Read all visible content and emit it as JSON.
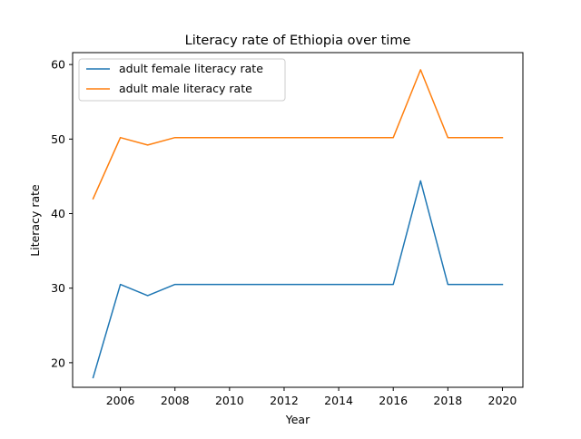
{
  "chart_data": {
    "type": "line",
    "title": "Literacy rate of Ethiopia over time",
    "xlabel": "Year",
    "ylabel": "Literacy rate",
    "xlim": [
      2004.25,
      2020.75
    ],
    "ylim": [
      16.7,
      61.6
    ],
    "x": [
      2005,
      2006,
      2007,
      2008,
      2009,
      2010,
      2011,
      2012,
      2013,
      2014,
      2015,
      2016,
      2017,
      2018,
      2019,
      2020
    ],
    "x_ticks": [
      2006,
      2008,
      2010,
      2012,
      2014,
      2016,
      2018,
      2020
    ],
    "x_tick_labels": [
      "2006",
      "2008",
      "2010",
      "2012",
      "2014",
      "2016",
      "2018",
      "2020"
    ],
    "y_ticks": [
      20,
      30,
      40,
      50,
      60
    ],
    "y_tick_labels": [
      "20",
      "30",
      "40",
      "50",
      "60"
    ],
    "grid": false,
    "legend_position": "top-left",
    "series": [
      {
        "name": "adult female literacy rate",
        "color": "#1f77b4",
        "values": [
          18.0,
          30.5,
          29.0,
          30.5,
          30.5,
          30.5,
          30.5,
          30.5,
          30.5,
          30.5,
          30.5,
          30.5,
          44.4,
          30.5,
          30.5,
          30.5
        ]
      },
      {
        "name": "adult male literacy rate",
        "color": "#ff7f0e",
        "values": [
          42.0,
          50.2,
          49.2,
          50.2,
          50.2,
          50.2,
          50.2,
          50.2,
          50.2,
          50.2,
          50.2,
          50.2,
          59.3,
          50.2,
          50.2,
          50.2
        ]
      }
    ]
  }
}
